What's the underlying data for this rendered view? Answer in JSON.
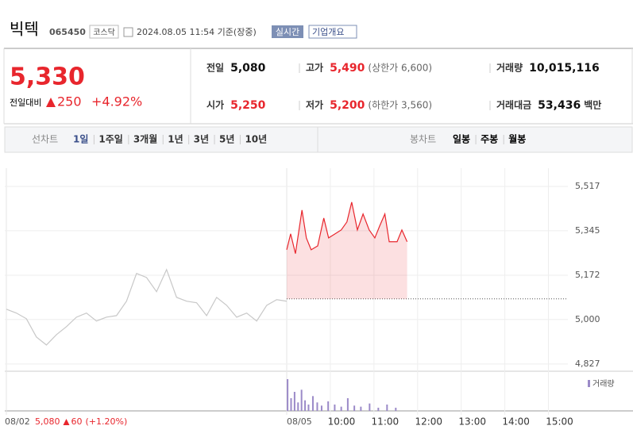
{
  "header": {
    "name": "빅텍",
    "code": "065450",
    "market": "코스닥",
    "timestamp": "2024.08.05 11:54 기준(장중)",
    "realtime": "실시간",
    "company_info": "기업개요"
  },
  "quote": {
    "price": "5,330",
    "change_label": "전일대비",
    "change": "250",
    "change_pct": "+4.92%"
  },
  "stats": [
    {
      "label": "전일",
      "value": "5,080"
    },
    {
      "label": "고가",
      "value": "5,490",
      "note": "(상한가 6,600)"
    },
    {
      "label": "거래량",
      "value": "10,015,116"
    },
    {
      "label": "시가",
      "value": "5,250"
    },
    {
      "label": "저가",
      "value": "5,200",
      "note": "(하한가 3,560)"
    },
    {
      "label": "거래대금",
      "value": "53,436",
      "unit": "백만"
    }
  ],
  "tabs": {
    "line_chart": "선차트",
    "line_periods": [
      "1일",
      "1주일",
      "3개월",
      "1년",
      "3년",
      "5년",
      "10년"
    ],
    "candle_chart": "봉차트",
    "candle_periods": [
      "일봉",
      "주봉",
      "월봉"
    ]
  },
  "chart_data": {
    "type": "line",
    "ylim": [
      4802,
      5588
    ],
    "yticks": [
      {
        "value": 5517,
        "label": "5,517"
      },
      {
        "value": 5345,
        "label": "5,345"
      },
      {
        "value": 5172,
        "label": "5,172"
      },
      {
        "value": 5000,
        "label": "5,000"
      },
      {
        "value": 4827,
        "label": "4,827"
      }
    ],
    "xlim": [
      9,
      15.5
    ],
    "xticks": [
      {
        "value": 10,
        "label": "10:00"
      },
      {
        "value": 11,
        "label": "11:00"
      },
      {
        "value": 12,
        "label": "12:00"
      },
      {
        "value": 13,
        "label": "13:00"
      },
      {
        "value": 14,
        "label": "14:00"
      },
      {
        "value": 15,
        "label": "15:00"
      }
    ],
    "day_labels": [
      "08/02",
      "08/05"
    ],
    "previous_close": 5080,
    "series": [
      {
        "color": "#c8c8c8",
        "values": [
          5040,
          5025,
          5003,
          4932,
          4901,
          4941,
          4972,
          5009,
          5025,
          4994,
          5009,
          5015,
          5071,
          5179,
          5163,
          5108,
          5194,
          5086,
          5071,
          5065,
          5015,
          5086,
          5055,
          5009,
          5025,
          4994,
          5055,
          5077,
          5071
        ]
      },
      {
        "color": "#e8262d",
        "x": [
          9.0,
          9.09,
          9.2,
          9.35,
          9.45,
          9.56,
          9.71,
          9.85,
          9.96,
          10.11,
          10.25,
          10.38,
          10.49,
          10.62,
          10.75,
          10.89,
          11.02,
          11.13,
          11.25,
          11.35,
          11.53,
          11.64,
          11.76
        ],
        "values": [
          5271,
          5333,
          5256,
          5425,
          5317,
          5271,
          5286,
          5394,
          5317,
          5333,
          5348,
          5379,
          5456,
          5348,
          5410,
          5348,
          5317,
          5363,
          5410,
          5302,
          5302,
          5348,
          5302
        ]
      }
    ],
    "volume": {
      "name": "거래량",
      "color": "#9b8ac8",
      "x": [
        9.02,
        9.1,
        9.18,
        9.26,
        9.34,
        9.42,
        9.5,
        9.6,
        9.7,
        9.8,
        9.95,
        10.1,
        10.25,
        10.4,
        10.55,
        10.7,
        10.9,
        11.1,
        11.3,
        11.5
      ],
      "values": [
        30,
        12,
        18,
        8,
        20,
        10,
        6,
        14,
        8,
        5,
        9,
        6,
        4,
        12,
        5,
        4,
        7,
        3,
        6,
        3
      ]
    },
    "footer": {
      "date": "08/02",
      "close": "5,080",
      "change": "60",
      "change_pct": "(+1.20%)"
    }
  }
}
